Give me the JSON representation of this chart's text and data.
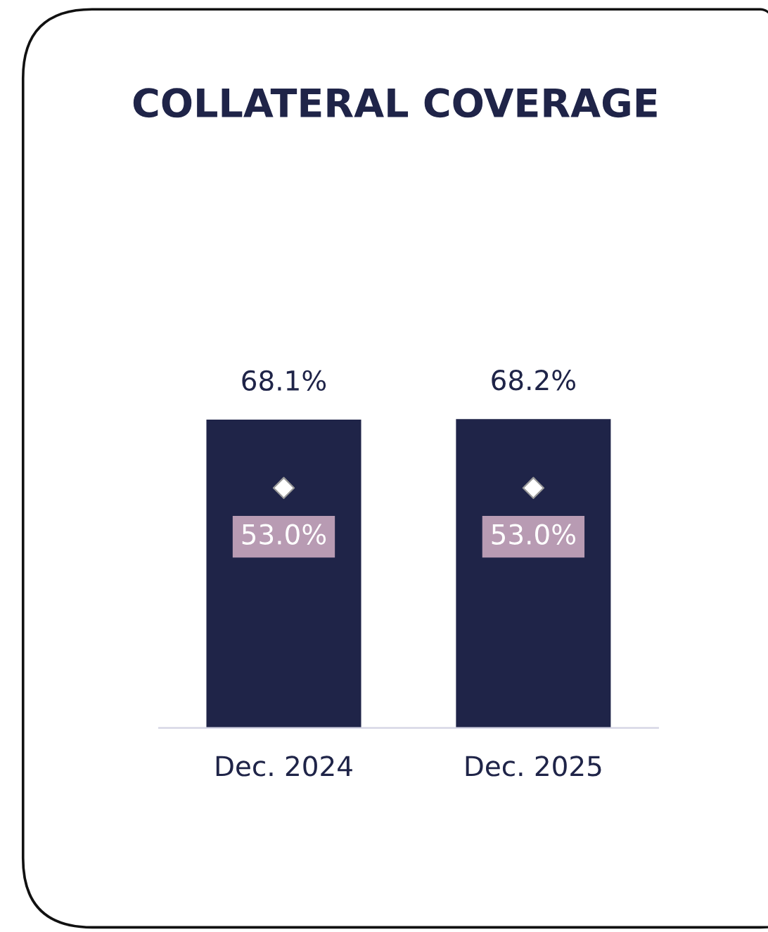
{
  "chart_data": {
    "type": "bar",
    "title": "COLLATERAL COVERAGE",
    "categories": [
      "Dec. 2024",
      "Dec. 2025"
    ],
    "series": [
      {
        "color": "#1f2448",
        "values": [
          68.1,
          68.2
        ],
        "value_labels": [
          "68.1%",
          "68.2%"
        ]
      },
      {
        "type": "scatter",
        "marker": "diamond",
        "color": "#ffffff",
        "values": [
          53.0,
          53.0
        ],
        "value_labels": [
          "53.0%",
          "53.0%"
        ]
      }
    ]
  }
}
